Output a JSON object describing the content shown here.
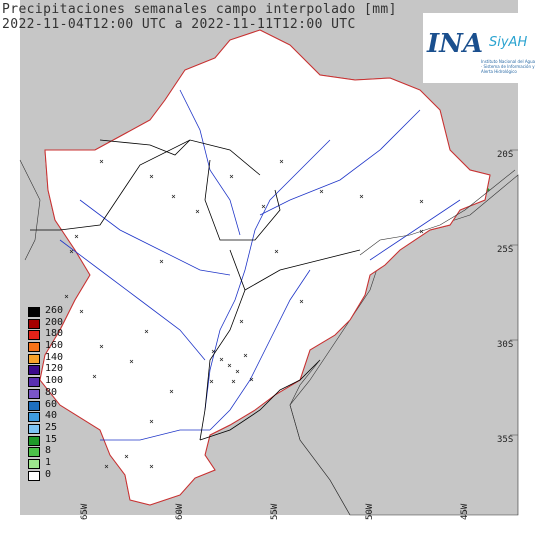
{
  "title_line1": "Precipitaciones semanales campo interpolado [mm]",
  "title_line2": "2022-11-04T12:00 UTC a 2022-11-11T12:00 UTC",
  "logo": {
    "main": "INA",
    "secondary": "SiyAH",
    "subtitle": "Instituto Nacional del Agua · Sistema de Información y Alerta Hidrológico"
  },
  "legend": [
    {
      "label": "260",
      "color": "#000000"
    },
    {
      "label": "200",
      "color": "#a50000"
    },
    {
      "label": "180",
      "color": "#e42319"
    },
    {
      "label": "160",
      "color": "#f8731a"
    },
    {
      "label": "140",
      "color": "#faa22b"
    },
    {
      "label": "120",
      "color": "#3c0a8c"
    },
    {
      "label": "100",
      "color": "#5a2fb2"
    },
    {
      "label": "80",
      "color": "#7a56c8"
    },
    {
      "label": "60",
      "color": "#1e6fbf"
    },
    {
      "label": "40",
      "color": "#3e9be0"
    },
    {
      "label": "25",
      "color": "#7ec4f5"
    },
    {
      "label": "15",
      "color": "#1f9a2a"
    },
    {
      "label": "8",
      "color": "#4dc24a"
    },
    {
      "label": "1",
      "color": "#9de68e"
    },
    {
      "label": "0",
      "color": "#ffffff"
    }
  ],
  "lat_labels": [
    "20S",
    "25S",
    "30S",
    "35S"
  ],
  "lon_labels": [
    "65W",
    "60W",
    "55W",
    "50W",
    "45W"
  ]
}
